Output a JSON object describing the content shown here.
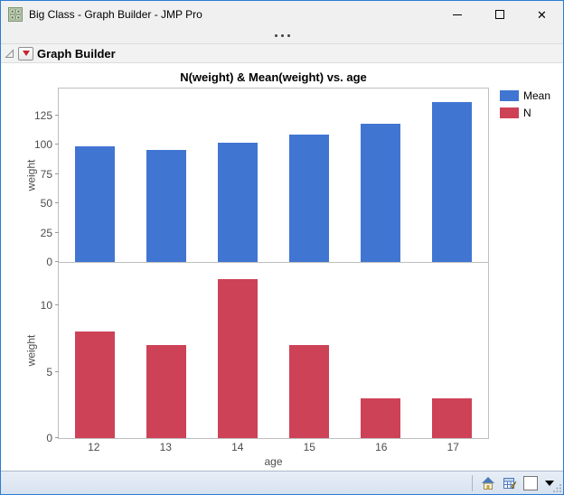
{
  "window": {
    "title": "Big Class - Graph Builder - JMP Pro",
    "border_color": "#2A7CD4",
    "controls": [
      {
        "name": "minimize",
        "icon": "minimize-icon"
      },
      {
        "name": "maximize",
        "icon": "maximize-icon"
      },
      {
        "name": "close",
        "icon": "close-icon",
        "glyph": "✕"
      }
    ]
  },
  "toolbar": {
    "overflow_indicator": "•••"
  },
  "outline": {
    "title": "Graph Builder",
    "disclosure": "open",
    "menu_icon": "red-triangle-icon"
  },
  "chart_data": {
    "type": "bar",
    "title": "N(weight) & Mean(weight) vs. age",
    "categories": [
      "12",
      "13",
      "14",
      "15",
      "16",
      "17"
    ],
    "xlabel": "age",
    "grid": false,
    "legend_position": "right",
    "legend": [
      {
        "label": "Mean",
        "color": "#4175D2"
      },
      {
        "label": "N",
        "color": "#CD4257"
      }
    ],
    "panels": [
      {
        "series": "Mean",
        "statistic": "Mean(weight)",
        "color": "#4175D2",
        "ylabel": "weight",
        "ylim": [
          0,
          148
        ],
        "yticks": [
          0,
          25,
          50,
          75,
          100,
          125
        ],
        "values": [
          99,
          95.3,
          101.4,
          108.6,
          118.3,
          136.7
        ]
      },
      {
        "series": "N",
        "statistic": "N(weight)",
        "color": "#CD4257",
        "ylabel": "weight",
        "ylim": [
          0,
          13.2
        ],
        "yticks": [
          0,
          5,
          10
        ],
        "values": [
          8,
          7,
          12,
          7,
          3,
          3
        ]
      }
    ]
  },
  "statusbar": {
    "icons": [
      {
        "name": "home-window-icon"
      },
      {
        "name": "data-table-icon"
      },
      {
        "name": "window-color-swatch"
      },
      {
        "name": "swatch-dropdown-icon"
      },
      {
        "name": "resize-grip-icon"
      }
    ]
  },
  "colors": {
    "mean_bar": "#4175D2",
    "n_bar": "#CD4257",
    "panel_border": "#BFBFBF",
    "tick_text": "#4D4D4D",
    "statusbar_bg": "#DDE6F2"
  }
}
